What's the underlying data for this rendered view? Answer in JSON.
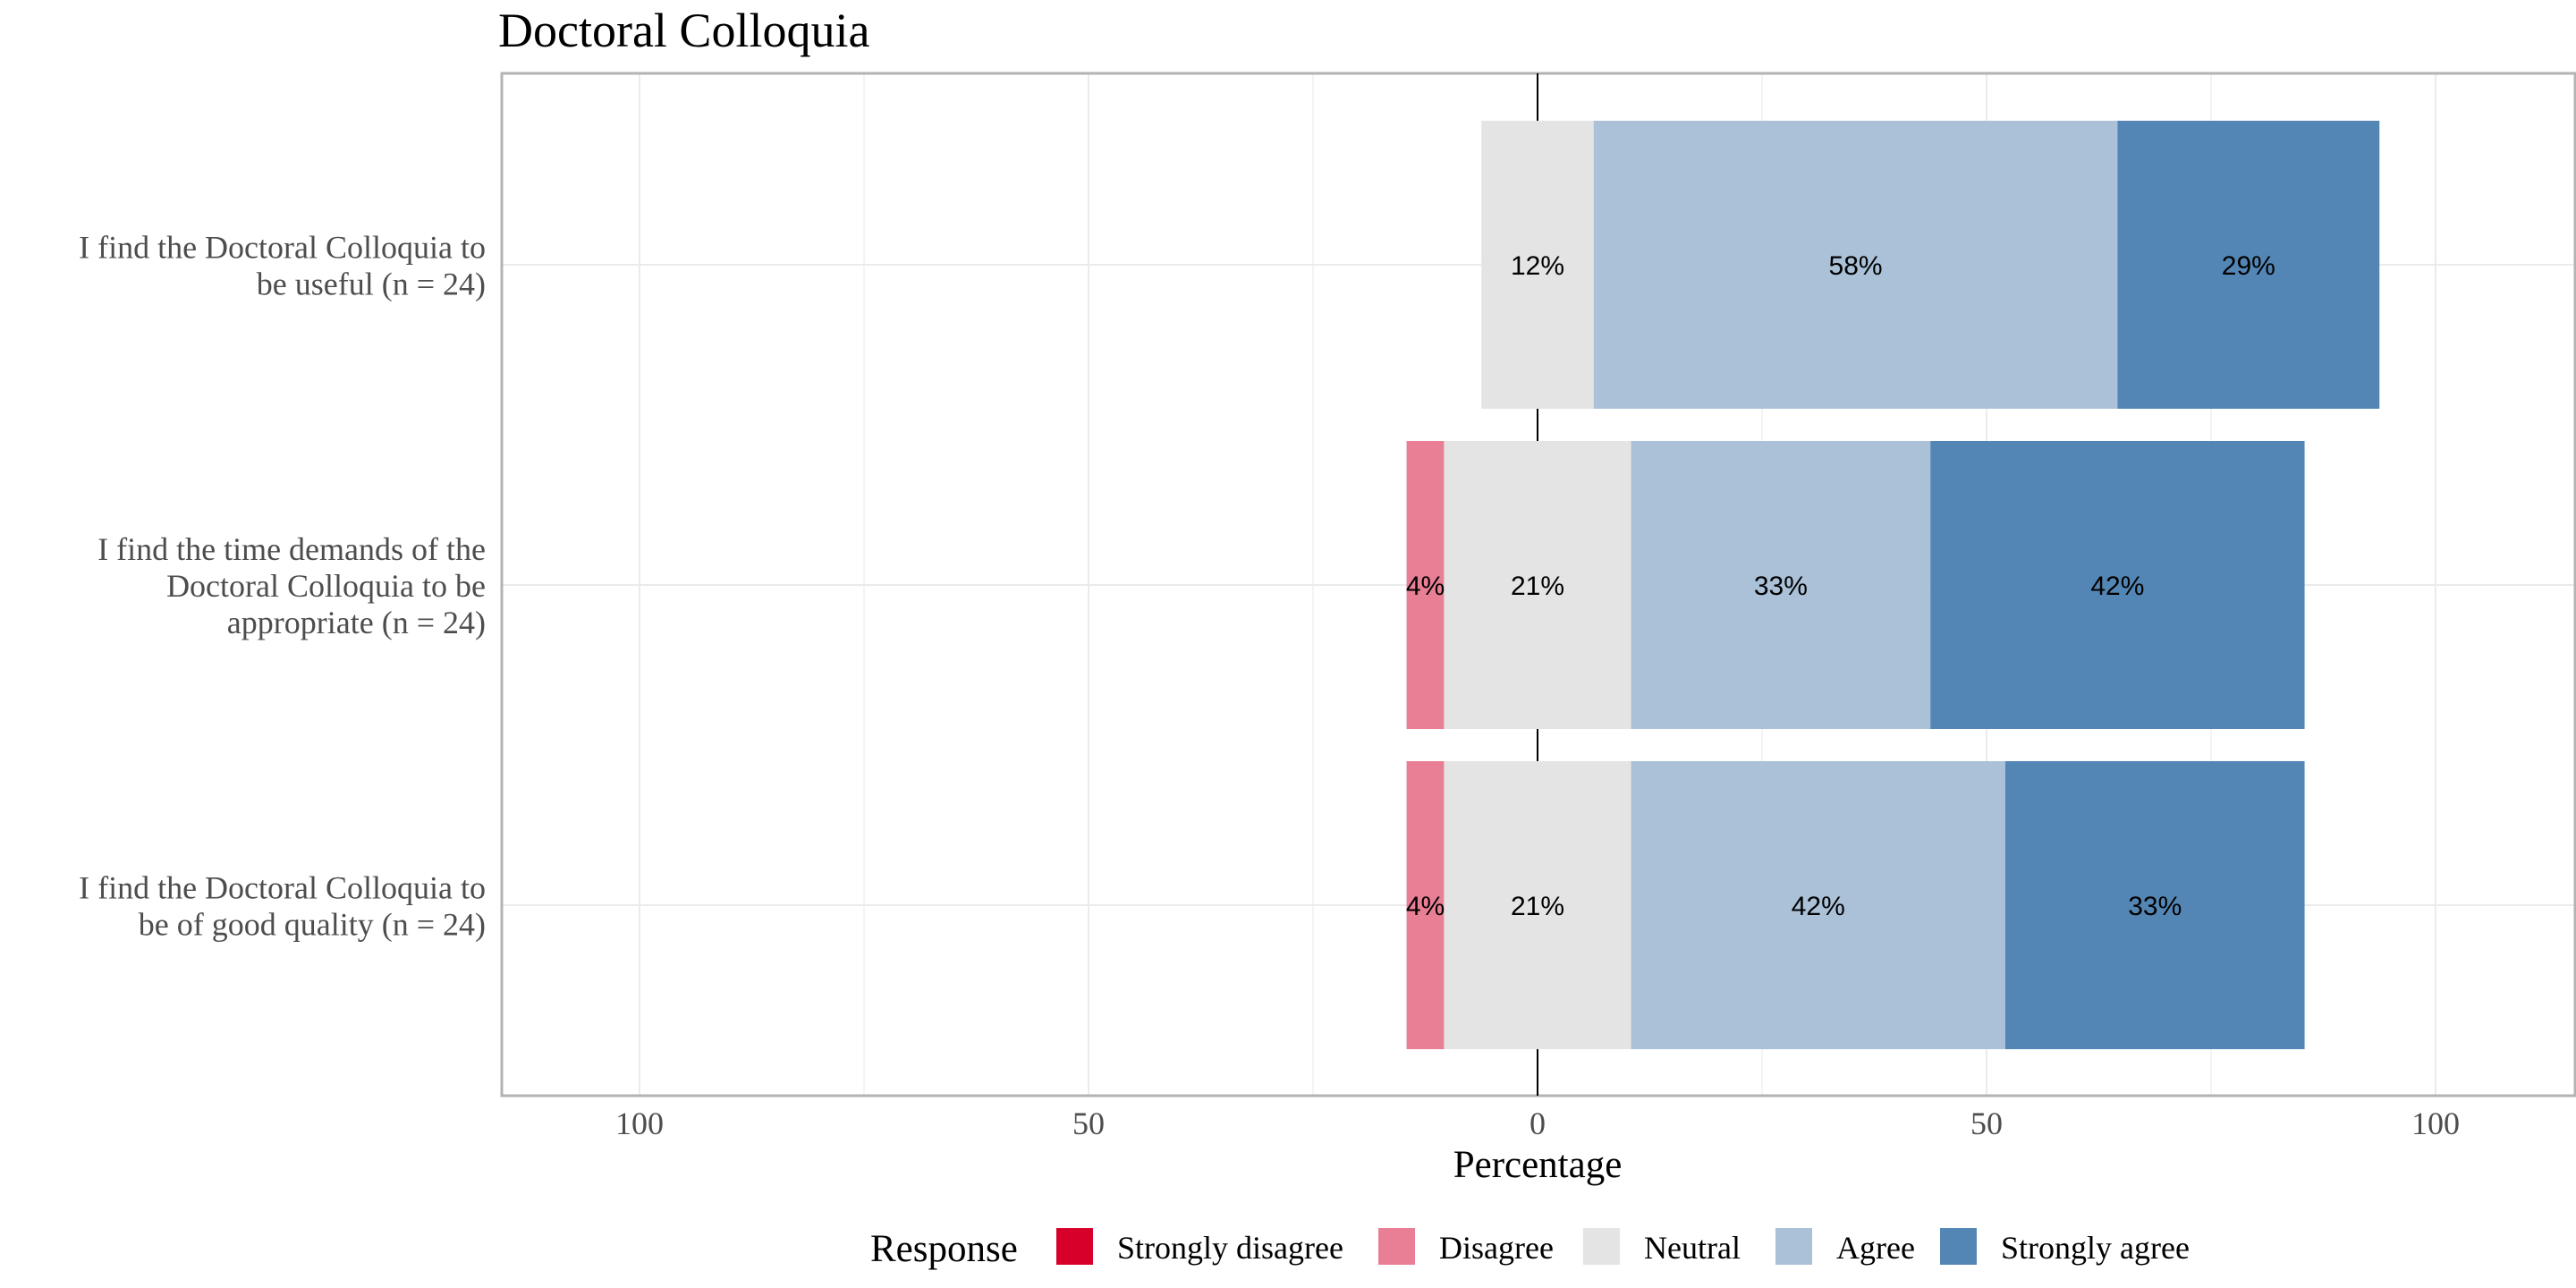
{
  "chart_data": {
    "type": "bar",
    "orientation": "horizontal",
    "stacked": "diverging",
    "title": "Doctoral Colloquia",
    "xlabel": "Percentage",
    "ylabel": "",
    "xlim": [
      -115,
      115
    ],
    "xticks": [
      {
        "value": -100,
        "label": "100"
      },
      {
        "value": -50,
        "label": "50"
      },
      {
        "value": 0,
        "label": "0"
      },
      {
        "value": 50,
        "label": "50"
      },
      {
        "value": 100,
        "label": "100"
      }
    ],
    "grid": true,
    "legend_position": "bottom",
    "legend_title": "Response",
    "categories": [
      "I find the Doctoral Colloquia to be useful (n = 24)",
      "I find the time demands of the Doctoral Colloquia to be appropriate (n = 24)",
      "I find the Doctoral Colloquia to be of good quality (n = 24)"
    ],
    "category_label_lines": [
      [
        "I find the Doctoral Colloquia to",
        "be useful (n = 24)"
      ],
      [
        "I find the time demands of the",
        "Doctoral Colloquia to be",
        "appropriate (n = 24)"
      ],
      [
        "I find the Doctoral Colloquia to",
        "be of good quality (n = 24)"
      ]
    ],
    "series": [
      {
        "name": "Strongly disagree",
        "color": "#d7002b",
        "values": [
          0,
          0,
          0
        ],
        "labels": [
          "",
          "",
          ""
        ]
      },
      {
        "name": "Disagree",
        "color": "#e97f95",
        "values": [
          0,
          4.17,
          4.17
        ],
        "labels": [
          "",
          "4%",
          "4%"
        ]
      },
      {
        "name": "Neutral",
        "color": "#e4e4e4",
        "values": [
          12.5,
          20.83,
          20.83
        ],
        "labels": [
          "12%",
          "21%",
          "21%"
        ]
      },
      {
        "name": "Agree",
        "color": "#aac1d8",
        "values": [
          58.33,
          33.33,
          41.67
        ],
        "labels": [
          "58%",
          "33%",
          "42%"
        ]
      },
      {
        "name": "Strongly agree",
        "color": "#5486b5",
        "values": [
          29.17,
          41.67,
          33.33
        ],
        "labels": [
          "29%",
          "42%",
          "33%"
        ]
      }
    ]
  }
}
